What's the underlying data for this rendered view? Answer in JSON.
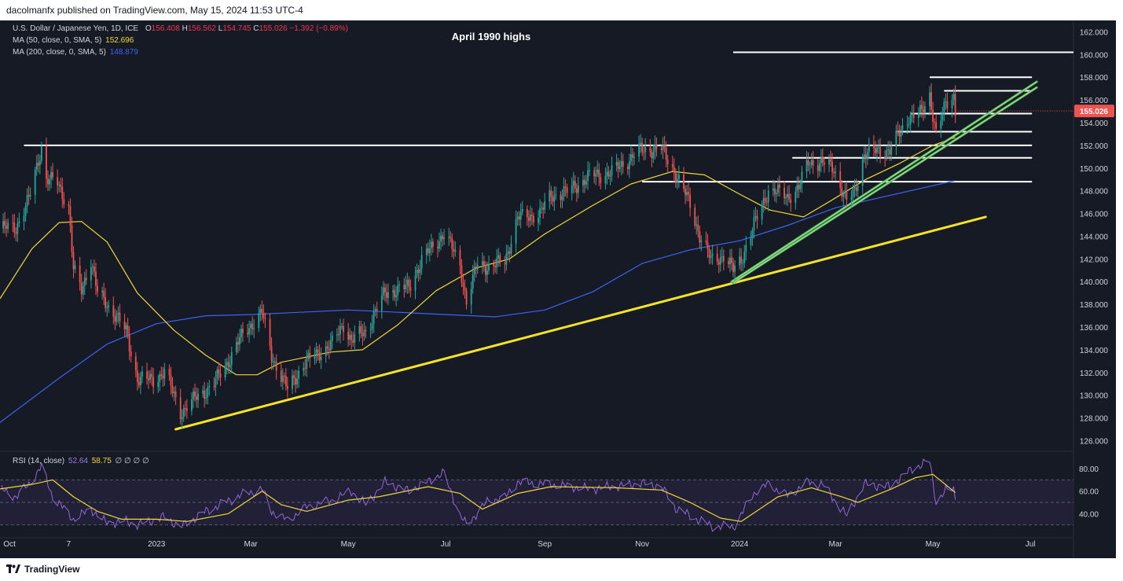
{
  "header": {
    "publisher_line": "dacolmanfx published on TradingView.com, May 15, 2024 11:53 UTC-4"
  },
  "legend": {
    "symbol": "U.S. Dollar / Japanese Yen, 1D, ICE",
    "open_label": "O",
    "open": "156.408",
    "high_label": "H",
    "high": "156.562",
    "low_label": "L",
    "low": "154.745",
    "close_label": "C",
    "close": "155.026",
    "change": "−1.392 (−0.89%)",
    "ma50_label": "MA (50, close, 0, SMA, 5)",
    "ma50_value": "152.696",
    "ma200_label": "MA (200, close, 0, SMA, 5)",
    "ma200_value": "148.879",
    "rsi_label": "RSI (14, close)",
    "rsi_value": "52.64",
    "rsi_ma_value": "58.75",
    "rsi_extra": "∅ ∅ ∅ ∅"
  },
  "annotation": "April 1990 highs",
  "price_tag": "155.026",
  "footer": {
    "logo_text": "TradingView"
  },
  "colors": {
    "background": "#161a25",
    "up": "#26a69a",
    "down": "#ef5350",
    "ma50": "#f0d836",
    "ma200": "#3d63f2",
    "support": "#f5e32a",
    "channel": "#4caf50",
    "rsi": "#9168d8",
    "rsi_band": "#2a2544"
  },
  "chart_data": {
    "type": "candlestick",
    "symbol": "USDJPY",
    "interval": "1D",
    "y_axis": {
      "ticks": [
        126,
        128,
        130,
        132,
        134,
        136,
        138,
        140,
        142,
        144,
        146,
        148,
        150,
        152,
        154,
        156,
        158,
        160,
        162
      ],
      "ylim": [
        125.2,
        163
      ]
    },
    "x_axis": {
      "ticks": [
        {
          "label": "Oct",
          "date": "2022-10-01"
        },
        {
          "label": "7",
          "date": "2022-11-07"
        },
        {
          "label": "2023",
          "date": "2023-01-01"
        },
        {
          "label": "Mar",
          "date": "2023-03-01"
        },
        {
          "label": "May",
          "date": "2023-05-01"
        },
        {
          "label": "Jul",
          "date": "2023-07-01"
        },
        {
          "label": "Sep",
          "date": "2023-09-01"
        },
        {
          "label": "Nov",
          "date": "2023-11-01"
        },
        {
          "label": "2024",
          "date": "2024-01-01"
        },
        {
          "label": "Mar",
          "date": "2024-03-01"
        },
        {
          "label": "May",
          "date": "2024-05-01"
        },
        {
          "label": "Jul",
          "date": "2024-07-01"
        }
      ],
      "xlim": [
        "2022-09-25",
        "2024-07-28"
      ]
    },
    "price_path": [
      [
        "2022-09-27",
        144.7
      ],
      [
        "2022-10-05",
        144.8
      ],
      [
        "2022-10-13",
        147.2
      ],
      [
        "2022-10-21",
        151.9
      ],
      [
        "2022-10-24",
        149.0
      ],
      [
        "2022-10-31",
        148.7
      ],
      [
        "2022-11-07",
        146.6
      ],
      [
        "2022-11-10",
        141.0
      ],
      [
        "2022-11-15",
        139.2
      ],
      [
        "2022-11-21",
        142.0
      ],
      [
        "2022-11-25",
        139.0
      ],
      [
        "2022-11-30",
        138.1
      ],
      [
        "2022-12-07",
        137.0
      ],
      [
        "2022-12-13",
        135.5
      ],
      [
        "2022-12-20",
        131.5
      ],
      [
        "2022-12-30",
        131.3
      ],
      [
        "2023-01-06",
        132.1
      ],
      [
        "2023-01-16",
        128.5
      ],
      [
        "2023-01-26",
        129.8
      ],
      [
        "2023-02-06",
        131.0
      ],
      [
        "2023-02-14",
        132.8
      ],
      [
        "2023-02-22",
        134.9
      ],
      [
        "2023-03-01",
        136.2
      ],
      [
        "2023-03-08",
        137.3
      ],
      [
        "2023-03-14",
        133.5
      ],
      [
        "2023-03-24",
        130.5
      ],
      [
        "2023-04-03",
        132.7
      ],
      [
        "2023-04-12",
        133.7
      ],
      [
        "2023-04-21",
        134.5
      ],
      [
        "2023-04-28",
        136.3
      ],
      [
        "2023-05-03",
        134.8
      ],
      [
        "2023-05-12",
        135.7
      ],
      [
        "2023-05-24",
        139.0
      ],
      [
        "2023-05-31",
        139.3
      ],
      [
        "2023-06-08",
        139.5
      ],
      [
        "2023-06-16",
        141.9
      ],
      [
        "2023-06-30",
        144.3
      ],
      [
        "2023-07-10",
        141.5
      ],
      [
        "2023-07-14",
        138.2
      ],
      [
        "2023-07-21",
        141.6
      ],
      [
        "2023-07-28",
        141.3
      ],
      [
        "2023-08-07",
        141.8
      ],
      [
        "2023-08-15",
        145.6
      ],
      [
        "2023-08-29",
        146.0
      ],
      [
        "2023-09-05",
        147.6
      ],
      [
        "2023-09-15",
        147.9
      ],
      [
        "2023-09-29",
        149.3
      ],
      [
        "2023-10-13",
        149.6
      ],
      [
        "2023-10-31",
        151.6
      ],
      [
        "2023-11-13",
        151.7
      ],
      [
        "2023-11-22",
        149.5
      ],
      [
        "2023-12-01",
        146.8
      ],
      [
        "2023-12-07",
        144.1
      ],
      [
        "2023-12-14",
        141.9
      ],
      [
        "2023-12-22",
        142.3
      ],
      [
        "2023-12-28",
        141.0
      ],
      [
        "2024-01-02",
        142.0
      ],
      [
        "2024-01-11",
        145.3
      ],
      [
        "2024-01-19",
        148.1
      ],
      [
        "2024-01-31",
        147.5
      ],
      [
        "2024-02-07",
        148.2
      ],
      [
        "2024-02-13",
        150.6
      ],
      [
        "2024-02-22",
        150.4
      ],
      [
        "2024-02-29",
        150.0
      ],
      [
        "2024-03-08",
        147.0
      ],
      [
        "2024-03-13",
        147.9
      ],
      [
        "2024-03-19",
        151.3
      ],
      [
        "2024-03-27",
        151.5
      ],
      [
        "2024-04-04",
        151.6
      ],
      [
        "2024-04-10",
        153.0
      ],
      [
        "2024-04-16",
        154.6
      ],
      [
        "2024-04-24",
        154.8
      ],
      [
        "2024-04-29",
        156.5
      ],
      [
        "2024-05-03",
        153.1
      ],
      [
        "2024-05-09",
        155.5
      ],
      [
        "2024-05-14",
        156.4
      ],
      [
        "2024-05-15",
        155.03
      ]
    ],
    "ma50_path": [
      [
        "2022-09-25",
        138.5
      ],
      [
        "2022-10-15",
        142.9
      ],
      [
        "2022-11-01",
        145.2
      ],
      [
        "2022-11-15",
        145.3
      ],
      [
        "2022-12-01",
        143.5
      ],
      [
        "2022-12-20",
        139.0
      ],
      [
        "2023-01-12",
        135.7
      ],
      [
        "2023-02-01",
        133.5
      ],
      [
        "2023-02-20",
        131.8
      ],
      [
        "2023-03-05",
        131.8
      ],
      [
        "2023-03-20",
        132.9
      ],
      [
        "2023-04-20",
        133.8
      ],
      [
        "2023-05-10",
        134.0
      ],
      [
        "2023-06-01",
        136.2
      ],
      [
        "2023-06-25",
        139.2
      ],
      [
        "2023-07-20",
        141.2
      ],
      [
        "2023-08-10",
        142.0
      ],
      [
        "2023-09-01",
        144.2
      ],
      [
        "2023-10-01",
        146.7
      ],
      [
        "2023-10-25",
        148.6
      ],
      [
        "2023-11-20",
        149.7
      ],
      [
        "2023-12-10",
        149.4
      ],
      [
        "2024-01-01",
        147.7
      ],
      [
        "2024-01-20",
        146.3
      ],
      [
        "2024-02-10",
        145.7
      ],
      [
        "2024-02-28",
        147.2
      ],
      [
        "2024-03-20",
        149.0
      ],
      [
        "2024-04-10",
        150.4
      ],
      [
        "2024-05-01",
        152.0
      ],
      [
        "2024-05-15",
        152.7
      ]
    ],
    "ma200_path": [
      [
        "2022-09-25",
        127.6
      ],
      [
        "2022-11-01",
        131.5
      ],
      [
        "2022-12-01",
        134.5
      ],
      [
        "2023-01-01",
        136.3
      ],
      [
        "2023-02-01",
        137.0
      ],
      [
        "2023-03-01",
        137.1
      ],
      [
        "2023-04-01",
        137.3
      ],
      [
        "2023-05-01",
        137.5
      ],
      [
        "2023-06-01",
        137.3
      ],
      [
        "2023-07-01",
        137.1
      ],
      [
        "2023-08-01",
        136.9
      ],
      [
        "2023-09-01",
        137.5
      ],
      [
        "2023-10-01",
        139.1
      ],
      [
        "2023-11-01",
        141.6
      ],
      [
        "2023-12-01",
        142.8
      ],
      [
        "2024-01-01",
        143.6
      ],
      [
        "2024-02-01",
        145.0
      ],
      [
        "2024-03-01",
        146.5
      ],
      [
        "2024-04-01",
        147.5
      ],
      [
        "2024-05-15",
        148.9
      ]
    ],
    "horizontal_levels": [
      {
        "y": 160.2,
        "from": "2023-12-28",
        "to": "2024-07-28"
      },
      {
        "y": 158.0,
        "from": "2024-04-29",
        "to": "2024-07-02"
      },
      {
        "y": 156.8,
        "from": "2024-05-08",
        "to": "2024-07-02"
      },
      {
        "y": 154.8,
        "from": "2024-04-17",
        "to": "2024-07-02"
      },
      {
        "y": 153.2,
        "from": "2024-04-09",
        "to": "2024-07-02"
      },
      {
        "y": 152.0,
        "from": "2022-10-10",
        "to": "2024-07-02"
      },
      {
        "y": 150.9,
        "from": "2024-02-03",
        "to": "2024-07-02"
      },
      {
        "y": 148.8,
        "from": "2023-11-01",
        "to": "2024-07-02"
      }
    ],
    "trendlines": [
      {
        "kind": "support",
        "from": [
          "2023-01-13",
          127.0
        ],
        "to": [
          "2024-06-03",
          145.7
        ]
      },
      {
        "kind": "channel",
        "from": [
          "2023-12-27",
          140.0
        ],
        "to": [
          "2024-07-05",
          157.6
        ]
      },
      {
        "kind": "channel",
        "from": [
          "2023-12-28",
          139.9
        ],
        "to": [
          "2024-07-05",
          157.1
        ]
      }
    ],
    "rsi": {
      "ticks": [
        40,
        60,
        80
      ],
      "band": [
        30,
        70
      ],
      "ylim": [
        22,
        92
      ],
      "path": [
        [
          "2022-09-25",
          62
        ],
        [
          "2022-10-05",
          55
        ],
        [
          "2022-10-13",
          66
        ],
        [
          "2022-10-21",
          82
        ],
        [
          "2022-10-28",
          55
        ],
        [
          "2022-11-10",
          35
        ],
        [
          "2022-11-21",
          44
        ],
        [
          "2022-11-30",
          32
        ],
        [
          "2022-12-13",
          33
        ],
        [
          "2022-12-20",
          30
        ],
        [
          "2023-01-06",
          37
        ],
        [
          "2023-01-16",
          28
        ],
        [
          "2023-02-01",
          42
        ],
        [
          "2023-02-22",
          56
        ],
        [
          "2023-03-08",
          62
        ],
        [
          "2023-03-14",
          42
        ],
        [
          "2023-03-24",
          34
        ],
        [
          "2023-04-05",
          46
        ],
        [
          "2023-04-21",
          52
        ],
        [
          "2023-05-03",
          60
        ],
        [
          "2023-05-12",
          48
        ],
        [
          "2023-05-24",
          68
        ],
        [
          "2023-06-08",
          60
        ],
        [
          "2023-06-30",
          76
        ],
        [
          "2023-07-10",
          38
        ],
        [
          "2023-07-14",
          30
        ],
        [
          "2023-07-28",
          52
        ],
        [
          "2023-08-07",
          54
        ],
        [
          "2023-08-15",
          68
        ],
        [
          "2023-09-05",
          66
        ],
        [
          "2023-09-29",
          62
        ],
        [
          "2023-10-13",
          64
        ],
        [
          "2023-11-01",
          67
        ],
        [
          "2023-11-13",
          64
        ],
        [
          "2023-11-22",
          45
        ],
        [
          "2023-12-01",
          38
        ],
        [
          "2023-12-14",
          29
        ],
        [
          "2023-12-28",
          28
        ],
        [
          "2024-01-11",
          60
        ],
        [
          "2024-01-19",
          66
        ],
        [
          "2024-01-31",
          56
        ],
        [
          "2024-02-13",
          68
        ],
        [
          "2024-02-22",
          66
        ],
        [
          "2024-03-08",
          38
        ],
        [
          "2024-03-19",
          66
        ],
        [
          "2024-04-04",
          64
        ],
        [
          "2024-04-16",
          78
        ],
        [
          "2024-04-29",
          87
        ],
        [
          "2024-05-03",
          50
        ],
        [
          "2024-05-09",
          60
        ],
        [
          "2024-05-14",
          63
        ],
        [
          "2024-05-15",
          52.6
        ]
      ],
      "ma_path": [
        [
          "2022-09-25",
          62
        ],
        [
          "2022-10-15",
          66
        ],
        [
          "2022-10-28",
          70
        ],
        [
          "2022-11-10",
          55
        ],
        [
          "2022-11-25",
          42
        ],
        [
          "2022-12-10",
          35
        ],
        [
          "2023-01-01",
          35
        ],
        [
          "2023-01-20",
          33
        ],
        [
          "2023-02-15",
          40
        ],
        [
          "2023-03-08",
          60
        ],
        [
          "2023-03-20",
          48
        ],
        [
          "2023-04-05",
          42
        ],
        [
          "2023-05-01",
          52
        ],
        [
          "2023-05-20",
          55
        ],
        [
          "2023-06-20",
          64
        ],
        [
          "2023-07-10",
          58
        ],
        [
          "2023-07-24",
          44
        ],
        [
          "2023-08-15",
          58
        ],
        [
          "2023-09-05",
          64
        ],
        [
          "2023-10-15",
          63
        ],
        [
          "2023-11-13",
          61
        ],
        [
          "2023-12-01",
          50
        ],
        [
          "2023-12-20",
          36
        ],
        [
          "2024-01-02",
          33
        ],
        [
          "2024-01-25",
          55
        ],
        [
          "2024-02-15",
          63
        ],
        [
          "2024-03-05",
          55
        ],
        [
          "2024-03-15",
          50
        ],
        [
          "2024-04-05",
          62
        ],
        [
          "2024-04-20",
          72
        ],
        [
          "2024-05-01",
          75
        ],
        [
          "2024-05-15",
          58.75
        ]
      ]
    }
  }
}
